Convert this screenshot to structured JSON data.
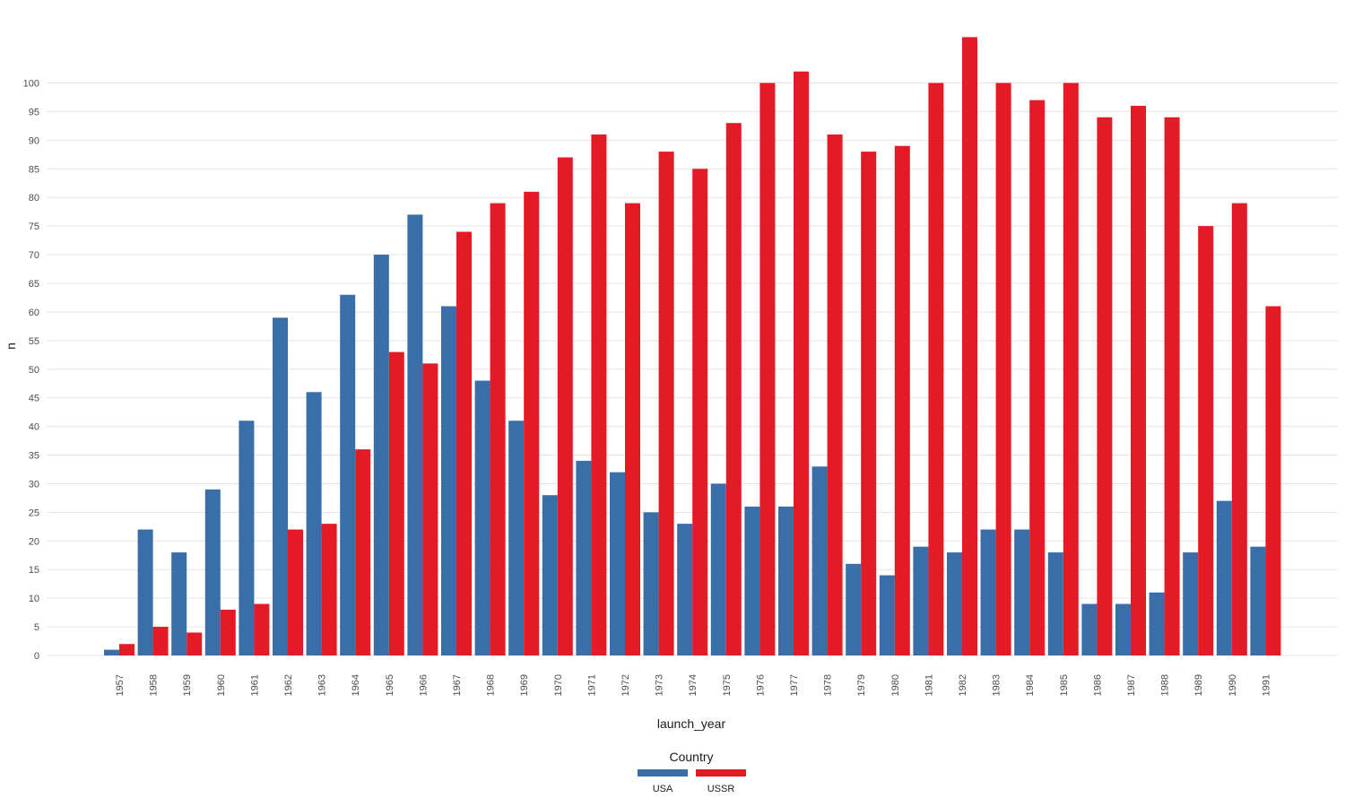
{
  "chart_data": {
    "type": "bar",
    "xlabel": "launch_year",
    "ylabel": "n",
    "ylim": [
      0,
      108
    ],
    "yticks": [
      0,
      5,
      10,
      15,
      20,
      25,
      30,
      35,
      40,
      45,
      50,
      55,
      60,
      65,
      70,
      75,
      80,
      85,
      90,
      95,
      100
    ],
    "grid": "horizontal",
    "legend": {
      "title": "Country",
      "position": "bottom"
    },
    "categories": [
      "1957",
      "1958",
      "1959",
      "1960",
      "1961",
      "1962",
      "1963",
      "1964",
      "1965",
      "1966",
      "1967",
      "1968",
      "1969",
      "1970",
      "1971",
      "1972",
      "1973",
      "1974",
      "1975",
      "1976",
      "1977",
      "1978",
      "1979",
      "1980",
      "1981",
      "1982",
      "1983",
      "1984",
      "1985",
      "1986",
      "1987",
      "1988",
      "1989",
      "1990",
      "1991"
    ],
    "series": [
      {
        "name": "USA",
        "color": "#3A6EA8",
        "values": [
          1,
          22,
          18,
          29,
          41,
          59,
          46,
          63,
          70,
          77,
          61,
          48,
          41,
          28,
          34,
          32,
          25,
          23,
          30,
          26,
          26,
          33,
          16,
          14,
          19,
          18,
          22,
          22,
          18,
          9,
          9,
          11,
          18,
          27,
          19
        ]
      },
      {
        "name": "USSR",
        "color": "#E41A24",
        "values": [
          2,
          5,
          4,
          8,
          9,
          22,
          23,
          36,
          53,
          51,
          74,
          79,
          81,
          87,
          91,
          79,
          88,
          85,
          93,
          100,
          102,
          91,
          88,
          89,
          100,
          108,
          100,
          97,
          100,
          94,
          96,
          94,
          75,
          79,
          61
        ]
      }
    ]
  }
}
